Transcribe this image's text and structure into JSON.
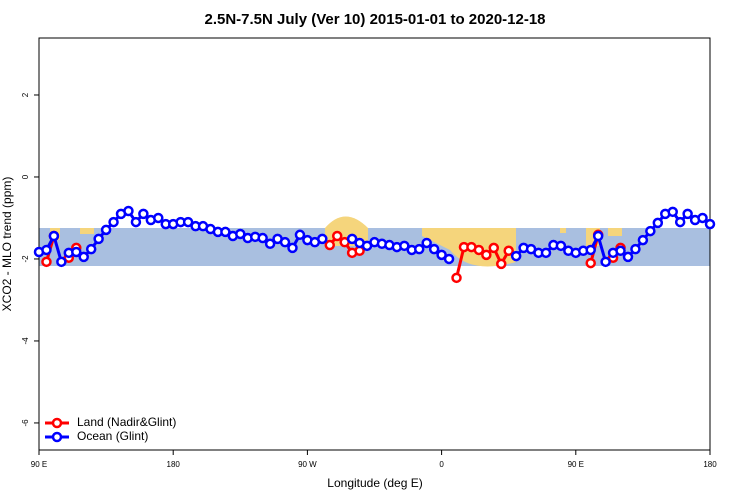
{
  "chart_data": {
    "type": "line",
    "title": "2.5N-7.5N July (Ver 10)   2015-01-01 to 2020-12-18",
    "x_label": "Longitude (deg E)",
    "y_label": "XCO2 - MLO trend (ppm)",
    "x": [
      90,
      95,
      100,
      105,
      110,
      115,
      120,
      125,
      130,
      135,
      140,
      145,
      150,
      155,
      160,
      165,
      170,
      175,
      180,
      185,
      190,
      195,
      200,
      205,
      210,
      215,
      220,
      225,
      230,
      235,
      240,
      245,
      250,
      255,
      260,
      265,
      270,
      275,
      280,
      285,
      290,
      295,
      300,
      305,
      310,
      315,
      320,
      325,
      330,
      335,
      340,
      345,
      350,
      355,
      360,
      365,
      370,
      375,
      380,
      385,
      390,
      395,
      400,
      405,
      410,
      415,
      420,
      425,
      430,
      435,
      440,
      445,
      450,
      455,
      460,
      465,
      470,
      475,
      480,
      485,
      490,
      495,
      500,
      505,
      510,
      515,
      520,
      525,
      530,
      535,
      540
    ],
    "series": [
      {
        "name": "Land (Nadir&Glint)",
        "color": "#ff0000",
        "values": [
          null,
          -2.07,
          -1.44,
          null,
          -1.97,
          -1.73,
          null,
          null,
          null,
          null,
          null,
          null,
          null,
          null,
          null,
          null,
          null,
          null,
          null,
          null,
          null,
          null,
          null,
          null,
          null,
          null,
          null,
          null,
          null,
          null,
          null,
          null,
          null,
          null,
          null,
          null,
          null,
          null,
          null,
          -1.66,
          -1.44,
          -1.59,
          -1.85,
          -1.8,
          null,
          null,
          null,
          null,
          null,
          null,
          null,
          null,
          null,
          null,
          null,
          null,
          -2.46,
          -1.71,
          -1.71,
          -1.78,
          -1.9,
          -1.73,
          -2.12,
          -1.8,
          null,
          null,
          null,
          null,
          null,
          null,
          null,
          null,
          null,
          null,
          -2.1,
          -1.41,
          null,
          -1.97,
          -1.73,
          null,
          null,
          null,
          null,
          null,
          null,
          null,
          null,
          null,
          null,
          null,
          null
        ]
      },
      {
        "name": "Ocean (Glint)",
        "color": "#0000ff",
        "values": [
          -1.83,
          -1.78,
          -1.44,
          -2.07,
          -1.85,
          -1.83,
          -1.95,
          -1.76,
          -1.51,
          -1.29,
          -1.1,
          -0.9,
          -0.83,
          -1.1,
          -0.9,
          -1.05,
          -1.0,
          -1.15,
          -1.15,
          -1.1,
          -1.1,
          -1.2,
          -1.2,
          -1.27,
          -1.34,
          -1.34,
          -1.44,
          -1.39,
          -1.49,
          -1.46,
          -1.49,
          -1.63,
          -1.51,
          -1.59,
          -1.73,
          -1.41,
          -1.54,
          -1.59,
          -1.51,
          null,
          null,
          null,
          -1.51,
          -1.61,
          -1.68,
          -1.59,
          -1.63,
          -1.66,
          -1.71,
          -1.68,
          -1.78,
          -1.76,
          -1.61,
          -1.76,
          -1.9,
          -2.0,
          null,
          null,
          null,
          null,
          null,
          null,
          null,
          null,
          -1.93,
          -1.73,
          -1.76,
          -1.85,
          -1.85,
          -1.66,
          -1.68,
          -1.8,
          -1.85,
          -1.8,
          -1.78,
          -1.44,
          -2.07,
          -1.85,
          -1.8,
          -1.95,
          -1.76,
          -1.54,
          -1.32,
          -1.12,
          -0.9,
          -0.85,
          -1.1,
          -0.9,
          -1.05,
          -1.0,
          -1.15
        ]
      }
    ],
    "xlim": [
      90,
      540
    ],
    "xticks": [
      {
        "value": 90,
        "label": "90 E"
      },
      {
        "value": 180,
        "label": "180"
      },
      {
        "value": 270,
        "label": "90 W"
      },
      {
        "value": 360,
        "label": "0"
      },
      {
        "value": 450,
        "label": "90 E"
      },
      {
        "value": 540,
        "label": "180"
      }
    ],
    "ylim": [
      -6.66,
      3.39
    ],
    "yticks": [
      -6,
      -4,
      -2,
      0,
      2
    ],
    "legend": "bottom-left"
  }
}
